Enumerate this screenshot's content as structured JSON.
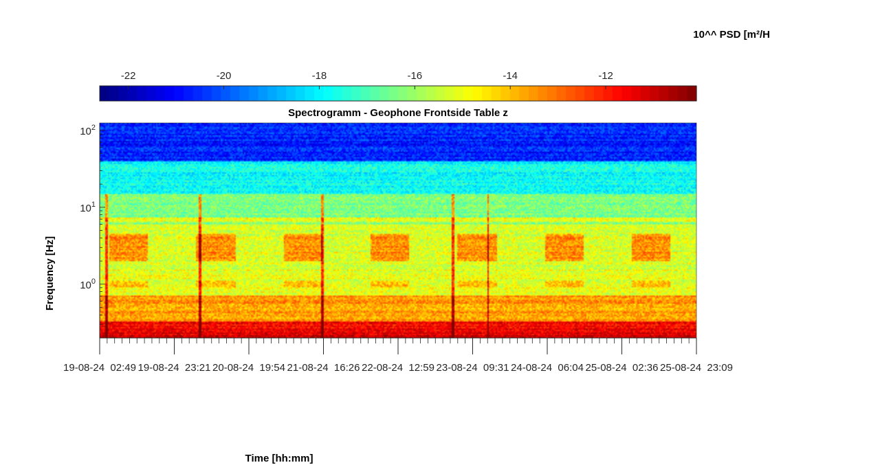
{
  "chart_data": {
    "type": "heatmap",
    "title": "Spectrogramm - Geophone Frontside Table z",
    "xlabel": "Time [hh:mm]",
    "ylabel": "Frequency [Hz]",
    "colorbar_label": "10^^ PSD [m²/H",
    "colormap": "jet",
    "color_range": [
      -22.6,
      -10.1
    ],
    "colorbar_ticks": [
      {
        "value": -22,
        "label": "-22"
      },
      {
        "value": -20,
        "label": "-20"
      },
      {
        "value": -18,
        "label": "-18"
      },
      {
        "value": -16,
        "label": "-16"
      },
      {
        "value": -14,
        "label": "-14"
      },
      {
        "value": -12,
        "label": "-12"
      }
    ],
    "y_scale": "log",
    "ylim": [
      0.2,
      125
    ],
    "y_ticks": [
      {
        "value": 1,
        "base": "10",
        "exp": "0"
      },
      {
        "value": 10,
        "base": "10",
        "exp": "1"
      },
      {
        "value": 100,
        "base": "10",
        "exp": "2"
      }
    ],
    "x_tick_labels": [
      "19-08-24  02:49",
      "19-08-24  23:21",
      "20-08-24  19:54",
      "21-08-24  16:26",
      "22-08-24  12:59",
      "23-08-24  09:31",
      "24-08-24  06:04",
      "25-08-24  02:36",
      "25-08-24  23:09"
    ],
    "events_day": [
      0.07,
      1.15,
      2.55,
      4.05,
      4.45
    ],
    "bands": [
      {
        "f_low": 0.2,
        "f_high": 0.33,
        "level": -11.8
      },
      {
        "f_low": 0.33,
        "f_high": 0.7,
        "level": -13.6
      },
      {
        "f_low": 0.7,
        "f_high": 6,
        "level": -15.2
      },
      {
        "f_low": 6,
        "f_high": 15,
        "level": -16.3
      },
      {
        "f_low": 15,
        "f_high": 40,
        "level": -17.8
      },
      {
        "f_low": 40,
        "f_high": 125,
        "level": -20.6
      }
    ]
  }
}
